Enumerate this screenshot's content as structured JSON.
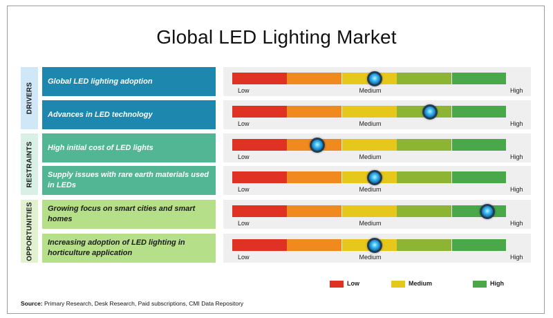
{
  "chart_data": {
    "type": "table",
    "title": "Global LED Lighting Market",
    "scale": {
      "levels": [
        "Low",
        "Medium",
        "High"
      ],
      "segment_colors": [
        "#e03224",
        "#f08a1e",
        "#e6c81c",
        "#8db432",
        "#4aa84a"
      ]
    },
    "categories": [
      {
        "name": "DRIVERS",
        "color": "#cfe7f7",
        "factor_color": "#1e87ad",
        "factor_text_color": "#ffffff",
        "factors": [
          {
            "label": "Global LED lighting adoption",
            "value": 0.52
          },
          {
            "label": "Advances in LED technology",
            "value": 0.72
          }
        ]
      },
      {
        "name": "RESTRAINTS",
        "color": "#d8f0e5",
        "factor_color": "#52b694",
        "factor_text_color": "#ffffff",
        "factors": [
          {
            "label": "High initial cost of LED lights",
            "value": 0.31
          },
          {
            "label": "Supply issues with rare earth materials used in LEDs",
            "value": 0.52
          }
        ]
      },
      {
        "name": "OPPORTUNITIES",
        "color": "#e2f1d0",
        "factor_color": "#b6df8a",
        "factor_text_color": "#1a1a1a",
        "factors": [
          {
            "label": "Growing focus on smart cities and smart homes",
            "value": 0.93
          },
          {
            "label": "Increasing adoption of LED lighting in horticulture application",
            "value": 0.52
          }
        ]
      }
    ],
    "legend": [
      {
        "label": "Low",
        "color": "#e03224"
      },
      {
        "label": "Medium",
        "color": "#e6c81c"
      },
      {
        "label": "High",
        "color": "#4aa84a"
      }
    ]
  },
  "source": {
    "prefix": "Source:",
    "text": " Primary Research, Desk Research, Paid subscriptions, CMI Data Repository"
  }
}
